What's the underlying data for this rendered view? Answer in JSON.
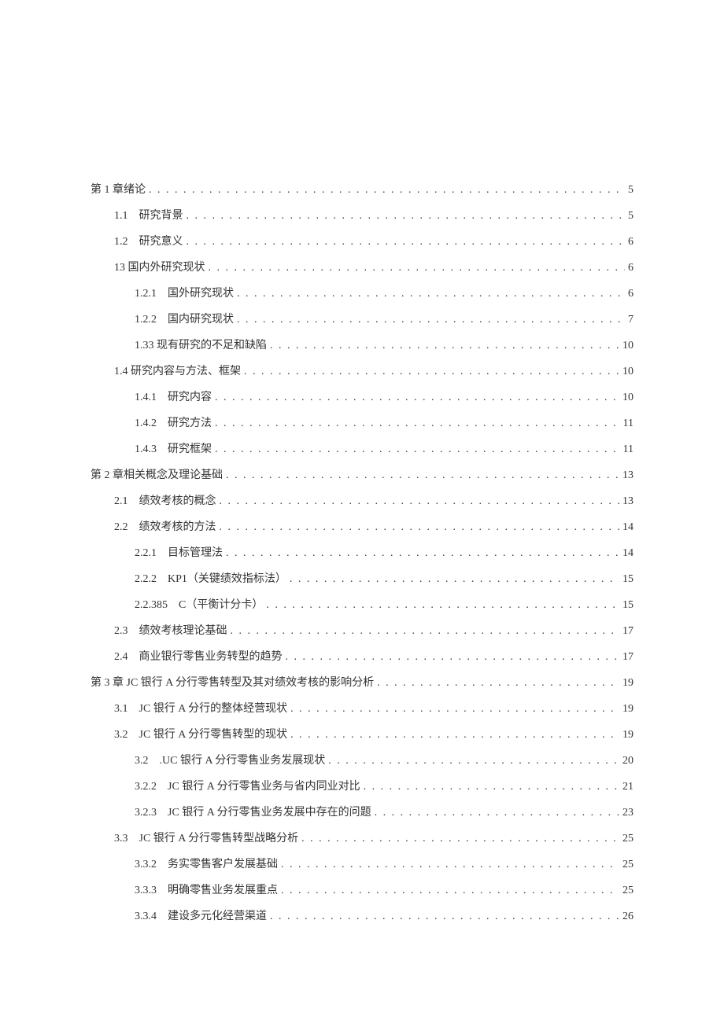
{
  "toc": {
    "dots": ". . . . . . . . . . . . . . . . . . . . . . . . . . . . . . . . . . . . . . . . . . . . . . . . . . . . . . . . . . . . . . . . . . . . . . . . . . . . . . . . . . . . . . . .",
    "entries": [
      {
        "level": 0,
        "label": "第 1 章绪论",
        "page": "5"
      },
      {
        "level": 1,
        "label": "1.1　研究背景",
        "page": "5"
      },
      {
        "level": 1,
        "label": "1.2　研究意义",
        "page": "6"
      },
      {
        "level": 1,
        "label": "13 国内外研究现状",
        "page": "6"
      },
      {
        "level": 2,
        "label": "1.2.1　国外研究现状",
        "page": "6"
      },
      {
        "level": 2,
        "label": "1.2.2　国内研究现状",
        "page": "7"
      },
      {
        "level": 2,
        "label": "1.33 现有研究的不足和缺陷",
        "page": "10"
      },
      {
        "level": 1,
        "label": "1.4 研究内容与方法、框架",
        "page": "10"
      },
      {
        "level": 2,
        "label": "1.4.1　研究内容",
        "page": "10"
      },
      {
        "level": 2,
        "label": "1.4.2　研究方法",
        "page": "11"
      },
      {
        "level": 2,
        "label": "1.4.3　研究框架",
        "page": "11"
      },
      {
        "level": 0,
        "label": "第 2 章相关概念及理论基础",
        "page": "13"
      },
      {
        "level": 1,
        "label": "2.1　绩效考核的概念",
        "page": "13"
      },
      {
        "level": 1,
        "label": "2.2　绩效考核的方法",
        "page": "14"
      },
      {
        "level": 2,
        "label": "2.2.1　目标管理法",
        "page": "14"
      },
      {
        "level": 2,
        "label": "2.2.2　KP1（关键绩效指标法）",
        "page": "15"
      },
      {
        "level": 2,
        "label": "2.2.385　C（平衡计分卡）",
        "page": "15"
      },
      {
        "level": 1,
        "label": "2.3　绩效考核理论基础",
        "page": "17"
      },
      {
        "level": 1,
        "label": "2.4　商业银行零售业务转型的趋势",
        "page": "17"
      },
      {
        "level": 0,
        "label": "第 3 章 JC 银行 A 分行零售转型及其对绩效考核的影响分析",
        "page": "19"
      },
      {
        "level": 1,
        "label": "3.1　JC 银行 A 分行的整体经营现状",
        "page": "19"
      },
      {
        "level": 1,
        "label": "3.2　JC 银行 A 分行零售转型的现状",
        "page": "19"
      },
      {
        "level": 2,
        "label": "3.2　.UC 银行 A 分行零售业务发展现状",
        "page": "20"
      },
      {
        "level": 2,
        "label": "3.2.2　JC 银行 A 分行零售业务与省内同业对比",
        "page": "21"
      },
      {
        "level": 2,
        "label": "3.2.3　JC 银行 A 分行零售业务发展中存在的问题",
        "page": "23"
      },
      {
        "level": 1,
        "label": "3.3　JC 银行 A 分行零售转型战略分析",
        "page": "25"
      },
      {
        "level": 2,
        "label": "3.3.2　务实零售客户发展基础",
        "page": "25"
      },
      {
        "level": 2,
        "label": "3.3.3　明确零售业务发展重点",
        "page": "25"
      },
      {
        "level": 2,
        "label": "3.3.4　建设多元化经营渠道",
        "page": "26"
      }
    ]
  }
}
